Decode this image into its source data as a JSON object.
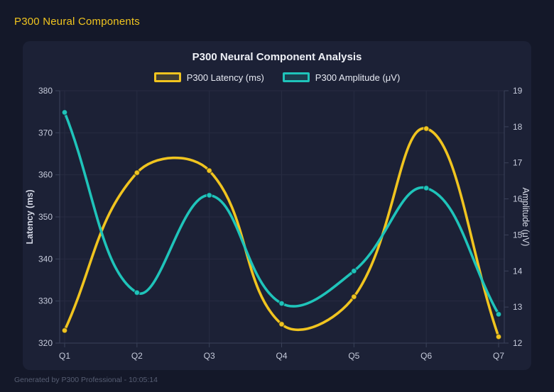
{
  "page": {
    "header_title": "P300 Neural Components",
    "footer_text": "Generated by P300 Professional - 10:05:14"
  },
  "colors": {
    "page_background": "#141829",
    "card_background": "#1c2136",
    "grid_line": "#272c42",
    "axis_line": "#3a4159",
    "tick_text": "#c6cbdb",
    "axis_title_text": "#d5d9e6",
    "title_text": "#eef0f6",
    "muted_text": "#575e73",
    "accent_yellow": "#f0c41f",
    "accent_teal": "#1fc4ba"
  },
  "chart_data": {
    "type": "line",
    "title": "P300 Neural Component Analysis",
    "categories": [
      "Q1",
      "Q2",
      "Q3",
      "Q4",
      "Q5",
      "Q6",
      "Q7"
    ],
    "series": [
      {
        "name": "P300 Latency (ms)",
        "axis": "left",
        "color": "#f0c41f",
        "values": [
          323,
          360.5,
          361,
          324.5,
          331,
          371,
          321.5
        ]
      },
      {
        "name": "P300 Amplitude (μV)",
        "axis": "right",
        "color": "#1fc4ba",
        "values": [
          18.4,
          13.4,
          16.1,
          13.1,
          14.0,
          16.3,
          12.8
        ]
      }
    ],
    "left_axis": {
      "label": "Latency (ms)",
      "min": 320,
      "max": 380,
      "ticks": [
        320,
        330,
        340,
        350,
        360,
        370,
        380
      ]
    },
    "right_axis": {
      "label": "Amplitude (μV)",
      "min": 12,
      "max": 19,
      "ticks": [
        12,
        13,
        14,
        15,
        16,
        17,
        18,
        19
      ]
    },
    "grid": true,
    "legend_position": "top",
    "line_tension": 0.4
  }
}
